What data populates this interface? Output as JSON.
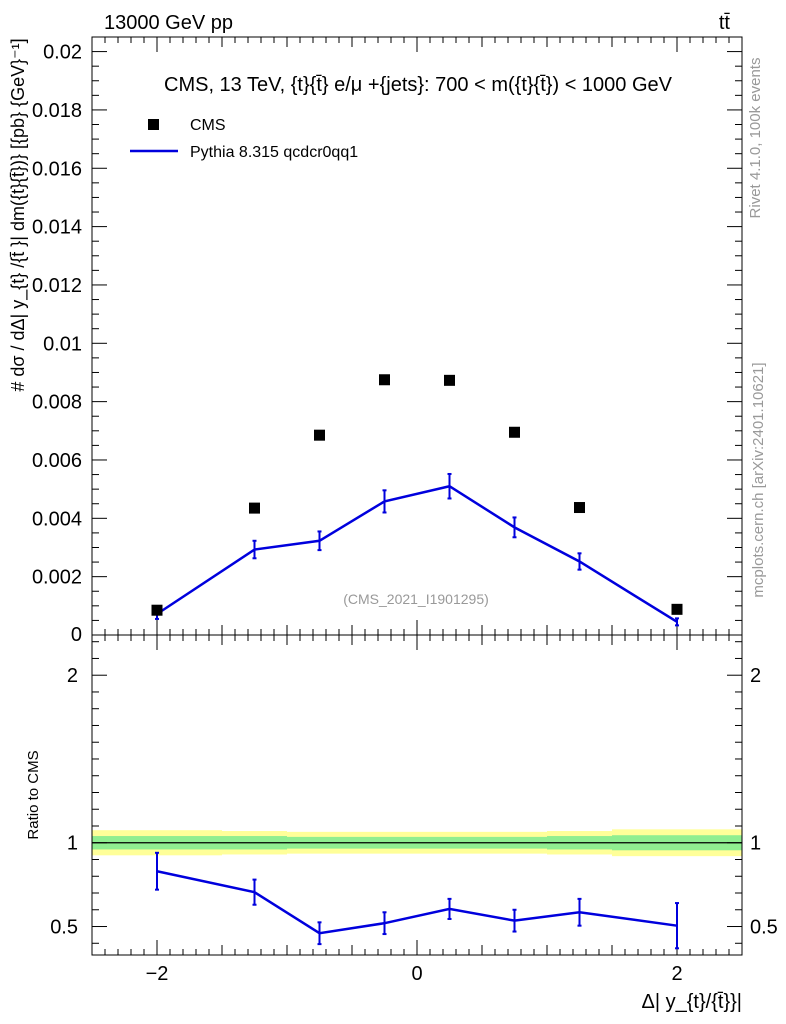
{
  "header": {
    "left": "13000 GeV pp",
    "right": "tt̄"
  },
  "side_labels": {
    "rivet": "Rivet 4.1.0,  100k events",
    "mcplots": "mcplots.cern.ch [arXiv:2401.10621]"
  },
  "chart_data": {
    "type": "scatter",
    "title": "CMS, 13 TeV, {t}{t̄} e/μ +{jets}: 700 < m({t}{t̄}) < 1000 GeV",
    "watermark": "(CMS_2021_I1901295)",
    "xlabel": "Δ| y_{t}/{t̄}}|",
    "ylabel": "# dσ / dΔ| y_{t} /{t̄ }| dm({t}{t̄})} [{pb} {GeV}⁻¹]",
    "xlim": [
      -2.5,
      2.5
    ],
    "ylim": [
      0,
      0.0205
    ],
    "x_ticks": [
      -2,
      0,
      2
    ],
    "x_tick_labels": [
      "−2",
      "0",
      "2"
    ],
    "y_ticks": [
      0.002,
      0.004,
      0.006,
      0.008,
      0.01,
      0.012,
      0.014,
      0.016,
      0.018,
      0.02
    ],
    "y_tick_labels": [
      "0.002",
      "0.004",
      "0.006",
      "0.008",
      "0.01",
      "0.012",
      "0.014",
      "0.016",
      "0.018",
      "0.02"
    ],
    "y_zero_label": "0",
    "legend": [
      "CMS",
      "Pythia 8.315 qcdcr0qq1"
    ],
    "bin_edges": [
      -2.5,
      -1.5,
      -1.0,
      -0.5,
      0.0,
      0.5,
      1.0,
      1.5,
      2.5
    ],
    "x": [
      -2.0,
      -1.25,
      -0.75,
      -0.25,
      0.25,
      0.75,
      1.25,
      2.0
    ],
    "series": [
      {
        "name": "CMS",
        "values": [
          0.00085,
          0.00435,
          0.00685,
          0.00875,
          0.00873,
          0.00695,
          0.00437,
          0.00088
        ],
        "marker": "square",
        "color": "#000000"
      },
      {
        "name": "Pythia 8.315 qcdcr0qq1",
        "values": [
          0.00072,
          0.00293,
          0.00323,
          0.00458,
          0.0051,
          0.00369,
          0.00252,
          0.00045
        ],
        "errors": [
          0.00017,
          0.0003,
          0.00032,
          0.00038,
          0.00042,
          0.00034,
          0.00028,
          0.00012
        ],
        "color": "#0000dd"
      }
    ],
    "ratio": {
      "ylabel": "Ratio to CMS",
      "ylim": [
        0.33,
        2.24
      ],
      "y_tick_labels": [
        "0.5",
        "1",
        "2"
      ],
      "y_ticks": [
        0.5,
        1,
        2
      ],
      "values": [
        0.83,
        0.705,
        0.46,
        0.52,
        0.605,
        0.535,
        0.585,
        0.505
      ],
      "errors": [
        0.11,
        0.075,
        0.065,
        0.065,
        0.06,
        0.065,
        0.08,
        0.135
      ],
      "band_inner": [
        0.04,
        0.04,
        0.035,
        0.035,
        0.035,
        0.035,
        0.04,
        0.045
      ],
      "band_outer": [
        0.075,
        0.07,
        0.065,
        0.065,
        0.065,
        0.065,
        0.07,
        0.08
      ],
      "band_inner_color": "#90ee90",
      "band_outer_color": "#ffff99"
    }
  }
}
